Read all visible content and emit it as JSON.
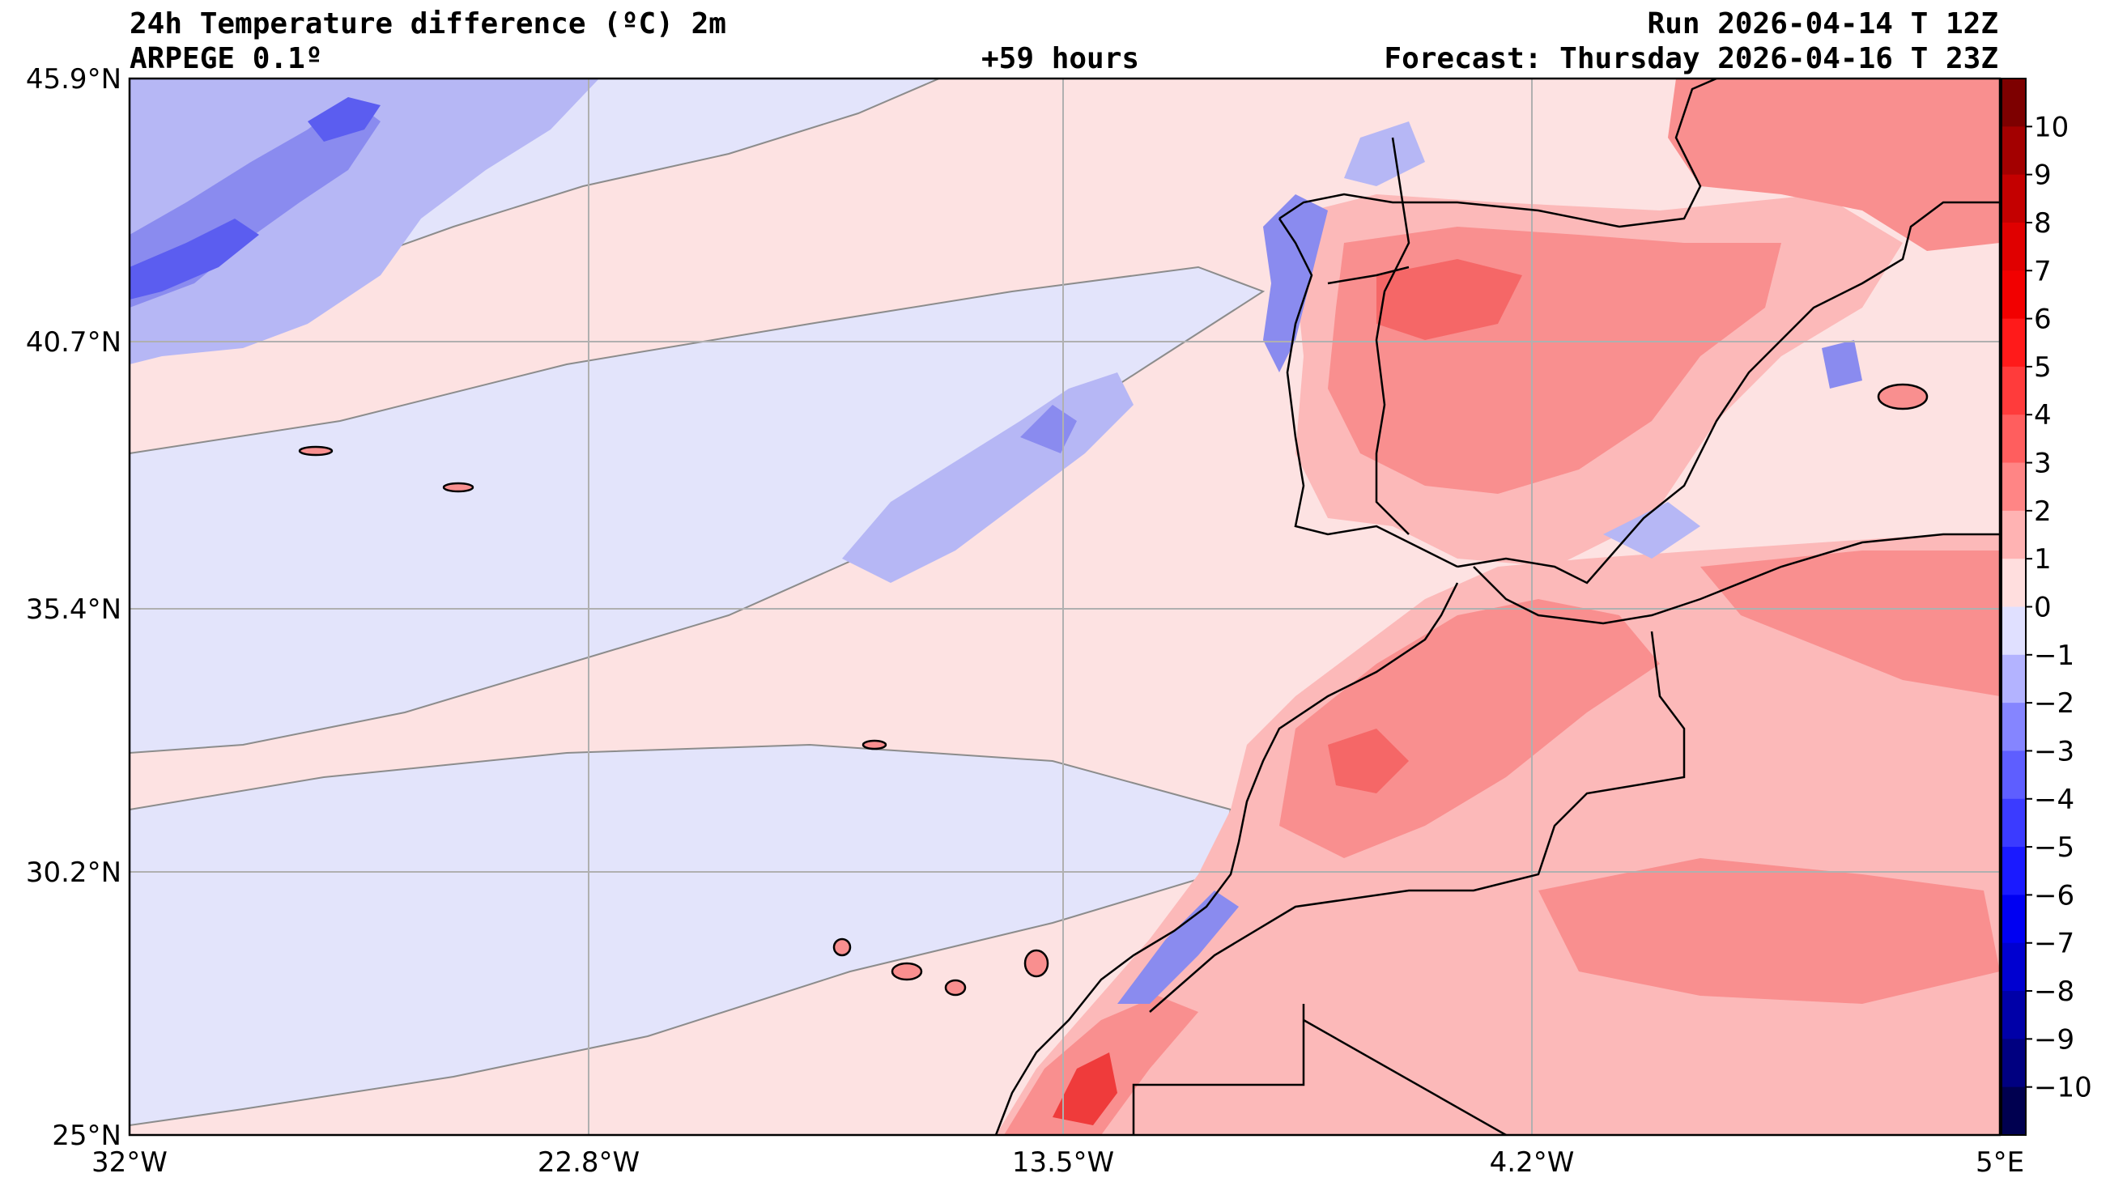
{
  "header": {
    "title": "24h Temperature difference (ºC) 2m",
    "model": "ARPEGE 0.1º",
    "lead": "+59 hours",
    "run": "Run 2026-04-14 T 12Z",
    "forecast": "Forecast: Thursday 2026-04-16 T 23Z"
  },
  "map": {
    "lat_ticks": [
      "45.9°N",
      "40.7°N",
      "35.4°N",
      "30.2°N",
      "25°N"
    ],
    "lon_ticks": [
      "32°W",
      "22.8°W",
      "13.5°W",
      "4.2°W",
      "5°E"
    ],
    "extent": {
      "lon_min": -32,
      "lon_max": 5,
      "lat_min": 25,
      "lat_max": 45.9
    },
    "colors": {
      "warm_light": "#fde2e2",
      "warm_1": "#fcb9b9",
      "warm_2": "#f98f8f",
      "warm_3": "#f56767",
      "warm_4": "#ef3b3b",
      "cool_light": "#e3e4fb",
      "cool_1": "#b6b7f5",
      "cool_2": "#8a8bef",
      "cool_3": "#5b5df0"
    }
  },
  "colorbar": {
    "labels": [
      "10",
      "9",
      "8",
      "7",
      "6",
      "5",
      "4",
      "3",
      "2",
      "1",
      "0",
      "−1",
      "−2",
      "−3",
      "−4",
      "−5",
      "−6",
      "−7",
      "−8",
      "−9",
      "−10"
    ],
    "colors": [
      "#7d0000",
      "#a30000",
      "#c40000",
      "#e00000",
      "#f20000",
      "#ff1a1a",
      "#ff3b3b",
      "#ff5e5e",
      "#ff8585",
      "#ffb3b3",
      "#ffdede",
      "#e0e0ff",
      "#b3b3ff",
      "#8585ff",
      "#5e5eff",
      "#3b3bff",
      "#1a1aff",
      "#0000f2",
      "#0000d0",
      "#0000a8",
      "#000080",
      "#000050"
    ]
  }
}
